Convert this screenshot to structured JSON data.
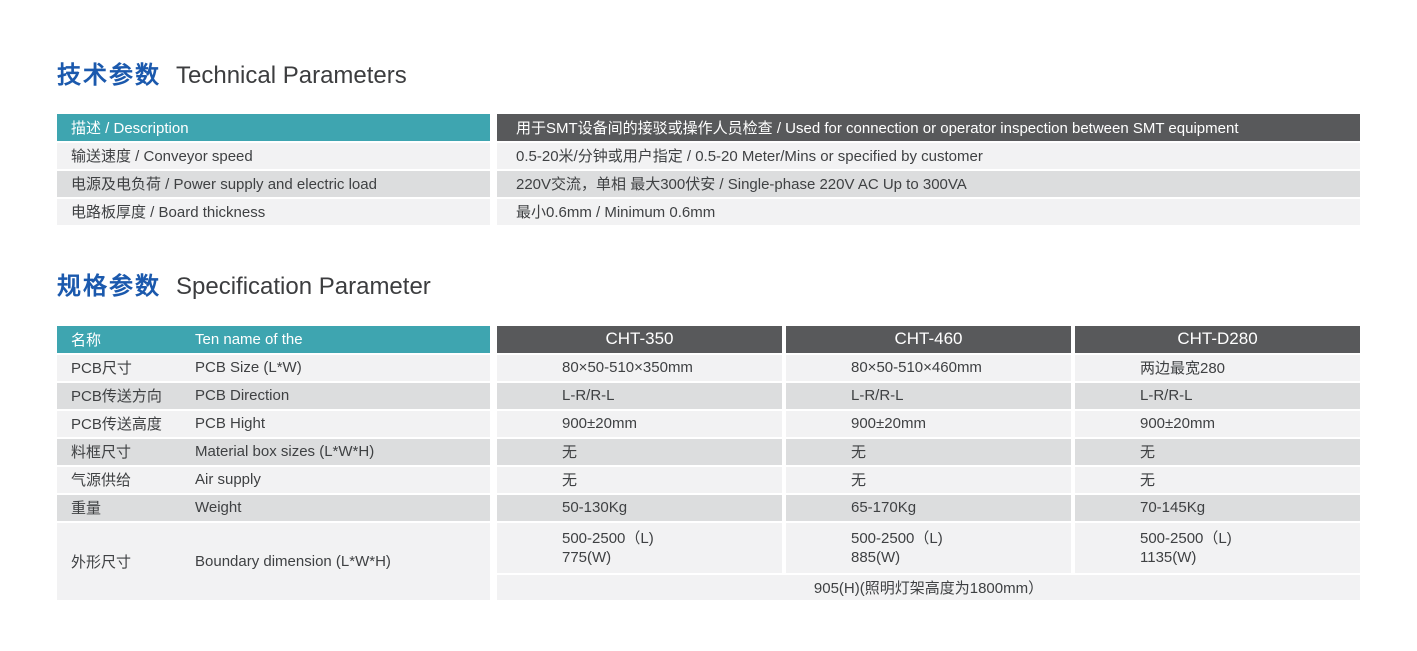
{
  "colors": {
    "accent_teal": "#3ea5b0",
    "header_gray": "#58595b",
    "title_blue": "#1b59ad",
    "row_light": "#f2f2f3",
    "row_mid": "#dcddde",
    "text": "#3f4143"
  },
  "technical": {
    "title_zh": "技术参数",
    "title_en": "Technical Parameters",
    "header": {
      "label": "描述 / Description",
      "value": "用于SMT设备间的接驳或操作人员检查 / Used for connection or operator inspection between SMT equipment"
    },
    "rows": [
      {
        "label": "输送速度 / Conveyor speed",
        "value": "0.5-20米/分钟或用户指定 / 0.5-20 Meter/Mins or specified by customer"
      },
      {
        "label": "电源及电负荷 / Power supply and electric load",
        "value": "220V交流，单相 最大300伏安 / Single-phase 220V AC Up to 300VA"
      },
      {
        "label": "电路板厚度 / Board thickness",
        "value": "最小0.6mm / Minimum 0.6mm"
      }
    ]
  },
  "specification": {
    "title_zh": "规格参数",
    "title_en": "Specification Parameter",
    "header": {
      "name_zh": "名称",
      "name_en": "Ten name of the",
      "models": [
        "CHT-350",
        "CHT-460",
        "CHT-D280"
      ]
    },
    "rows": [
      {
        "zh": "PCB尺寸",
        "en": "PCB Size (L*W)",
        "values": [
          "80×50-510×350mm",
          "80×50-510×460mm",
          "两边最宽280"
        ]
      },
      {
        "zh": "PCB传送方向",
        "en": "PCB Direction",
        "values": [
          "L-R/R-L",
          "L-R/R-L",
          "L-R/R-L"
        ]
      },
      {
        "zh": "PCB传送高度",
        "en": "PCB Hight",
        "values": [
          "900±20mm",
          "900±20mm",
          "900±20mm"
        ]
      },
      {
        "zh": "料框尺寸",
        "en": "Material box sizes (L*W*H)",
        "values": [
          "无",
          "无",
          "无"
        ]
      },
      {
        "zh": "气源供给",
        "en": "Air supply",
        "values": [
          "无",
          "无",
          "无"
        ]
      },
      {
        "zh": "重量",
        "en": "Weight",
        "values": [
          "50-130Kg",
          "65-170Kg",
          "70-145Kg"
        ]
      }
    ],
    "dimension_row": {
      "zh": "外形尺寸",
      "en": "Boundary dimension (L*W*H)",
      "values": [
        [
          "500-2500（L)",
          "775(W)"
        ],
        [
          "500-2500（L)",
          "885(W)"
        ],
        [
          "500-2500（L)",
          "1135(W)"
        ]
      ],
      "merged": "905(H)(照明灯架高度为1800mm）"
    }
  }
}
